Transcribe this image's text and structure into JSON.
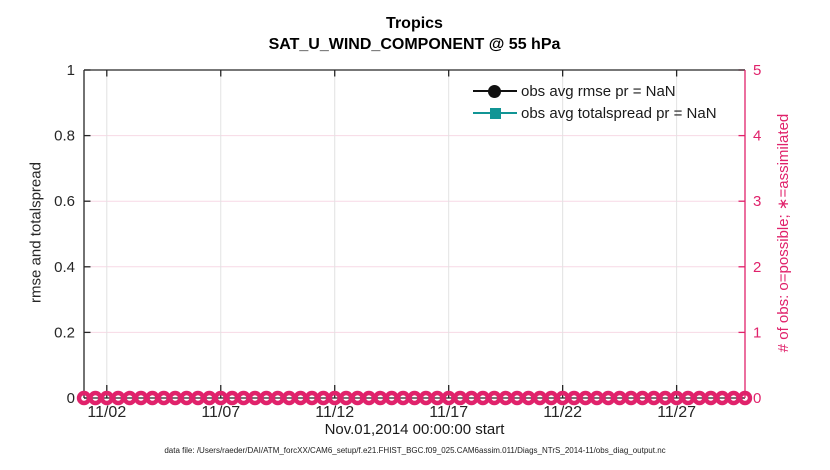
{
  "figure": {
    "footnote": "data file: /Users/raeder/DAI/ATM_forcXX/CAM6_setup/f.e21.FHIST_BGC.f09_025.CAM6assim.011/Diags_NTrS_2014-11/obs_diag_output.nc"
  },
  "chart_data": {
    "type": "line",
    "title": "Tropics",
    "subtitle": "SAT_U_WIND_COMPONENT @ 55 hPa",
    "xlabel": "Nov.01,2014 00:00:00 start",
    "x_axis": {
      "range_days": [
        1,
        30
      ],
      "tick_days": [
        2,
        7,
        12,
        17,
        22,
        27
      ],
      "tick_labels": [
        "11/02",
        "11/07",
        "11/12",
        "11/17",
        "11/22",
        "11/27"
      ]
    },
    "left_axis": {
      "label": "rmse and totalspread",
      "lim": [
        0,
        1
      ],
      "ticks": [
        0,
        0.2,
        0.4,
        0.6,
        0.8,
        1
      ],
      "tick_labels": [
        "0",
        "0.2",
        "0.4",
        "0.6",
        "0.8",
        "1"
      ],
      "color": "#262626"
    },
    "right_axis": {
      "label": "# of obs: o=possible; ∗=assimilated",
      "lim": [
        0,
        5
      ],
      "ticks": [
        0,
        1,
        2,
        3,
        4,
        5
      ],
      "tick_labels": [
        "0",
        "1",
        "2",
        "3",
        "4",
        "5"
      ],
      "color": "#E0226B"
    },
    "series": [
      {
        "name": "obs avg rmse pr = NaN",
        "marker": "circle",
        "color": "#111111",
        "values": []
      },
      {
        "name": "obs avg totalspread pr = NaN",
        "marker": "square",
        "color": "#119595",
        "values": []
      }
    ],
    "obs_counts": {
      "axis": "right",
      "marker": "o",
      "color": "#E0226B",
      "value": 0,
      "day_start": 1,
      "day_step": 0.5,
      "count": 59
    },
    "grid": {
      "vertical_color": "#E2E2E2",
      "horizontal_color": "#F7D9E5"
    },
    "legend": {
      "position": "upper right",
      "entries": [
        "obs avg rmse pr = NaN",
        "obs avg totalspread pr = NaN"
      ]
    }
  }
}
